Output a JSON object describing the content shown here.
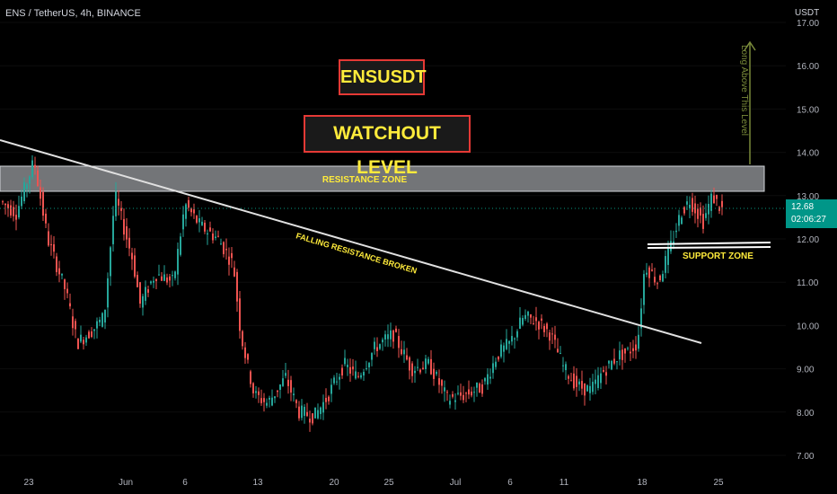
{
  "header": {
    "symbol": "ENS / TetherUS, 4h, BINANCE",
    "currency": "USDT"
  },
  "annotations": {
    "title_box": "ENSUSDT",
    "subtitle_box": "WATCHOUT LEVEL",
    "resistance_zone": "RESISTANCE ZONE",
    "support_zone": "SUPPORT ZONE",
    "falling_resistance": "FALLING RESISTANCE BROKEN",
    "long_above": "Long Above This Level"
  },
  "price_tag": {
    "price": "12.68",
    "countdown": "02:06:27"
  },
  "colors": {
    "background": "#000000",
    "up_candle": "#26a69a",
    "down_candle": "#ef5350",
    "label_yellow": "#ffeb3b",
    "box_border": "#e53935",
    "zone_fill": "#b0b3b8",
    "trendline": "#e0e0e0",
    "arrow": "#7a8b3a",
    "price_line": "#089981"
  },
  "chart_data": {
    "type": "candlestick",
    "interval": "4h",
    "y_axis": {
      "ticks": [
        "7.00",
        "8.00",
        "9.00",
        "10.00",
        "11.00",
        "12.00",
        "13.00",
        "14.00",
        "15.00",
        "16.00",
        "17.00"
      ],
      "range": [
        6.8,
        17.1
      ]
    },
    "x_axis": {
      "ticks": [
        "23",
        "Jun",
        "6",
        "13",
        "20",
        "25",
        "Jul",
        "6",
        "11",
        "18",
        "25"
      ]
    },
    "approx_path": [
      {
        "x": "23",
        "price": 12.9
      },
      {
        "x": "Jun",
        "price": 12.4
      },
      {
        "x": "6",
        "price": 12.2
      },
      {
        "x": "13",
        "price": 8.2
      },
      {
        "x": "20",
        "price": 8.0
      },
      {
        "x": "25",
        "price": 9.9
      },
      {
        "x": "Jul",
        "price": 8.5
      },
      {
        "x": "6",
        "price": 10.4
      },
      {
        "x": "11",
        "price": 8.4
      },
      {
        "x": "18",
        "price": 10.0
      },
      {
        "x": "25",
        "price": 12.68
      }
    ],
    "levels": {
      "resistance_zone": [
        13.05,
        13.65
      ],
      "support_zone": [
        11.75,
        11.85
      ],
      "last_price": 12.68
    }
  }
}
